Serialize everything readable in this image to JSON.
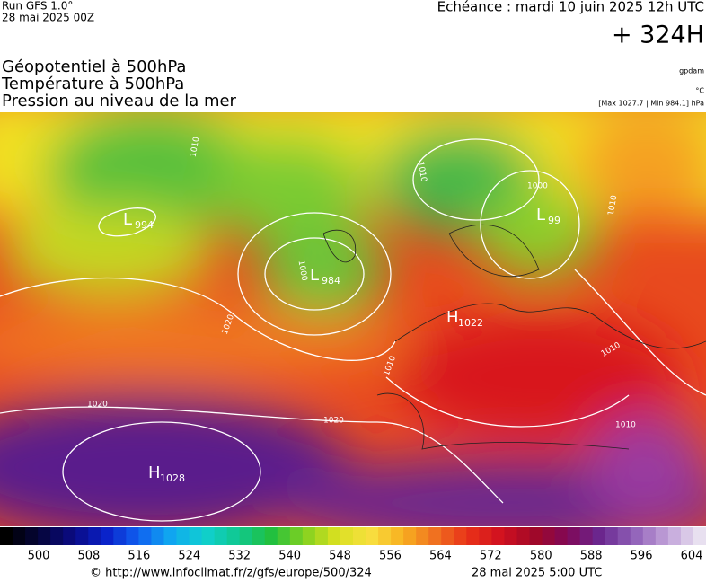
{
  "header": {
    "run": "Run GFS 1.0°",
    "run_date": "28 mai 2025 00Z",
    "valid": "Echéance : mardi 10 juin 2025 12h UTC",
    "lead": "+ 324H"
  },
  "layers": [
    "Géopotentiel à 500hPa",
    "Température à 500hPa",
    "Pression au niveau de la mer"
  ],
  "units": [
    "gpdam",
    "°C",
    "[Max 1027.7 | Min 984.1] hPa"
  ],
  "centers": [
    {
      "symbol": "H",
      "value": "1028"
    },
    {
      "symbol": "L",
      "value": "984"
    },
    {
      "symbol": "H",
      "value": "1022"
    },
    {
      "symbol": "L",
      "value": "994"
    },
    {
      "symbol": "L",
      "value": "99"
    }
  ],
  "isobars": [
    "1020",
    "1020",
    "1010",
    "1000",
    "1010",
    "1000",
    "1010",
    "1010",
    "1020",
    "1010",
    "1010"
  ],
  "colorbar": {
    "ticks": [
      500,
      508,
      516,
      524,
      532,
      540,
      548,
      556,
      564,
      572,
      580,
      588,
      596,
      604
    ]
  },
  "footer": {
    "source": "© http://www.infoclimat.fr/z/gfs/europe/500/324",
    "date": "28 mai 2025  5:00 UTC"
  }
}
